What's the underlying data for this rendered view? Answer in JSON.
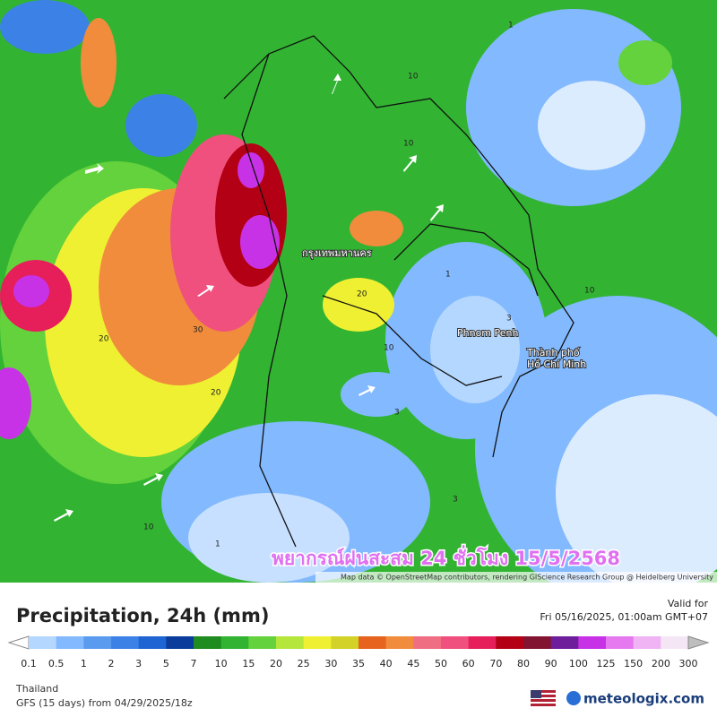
{
  "map": {
    "overlay_title": "พยากรณ์ฝนสะสม 24 ชั่วโมง 15/5/2568",
    "attribution": "Map data © OpenStreetMap contributors, rendering GIScience Research Group @ Heidelberg University",
    "places": [
      "กรุงเทพมหานคร",
      "Phnom Penh",
      "Thành phố",
      "Hồ Chí Minh"
    ],
    "contour_labels": [
      "20",
      "30",
      "20",
      "20",
      "10",
      "10",
      "1",
      "3",
      "3",
      "10",
      "10",
      "1",
      "3",
      "10",
      "1"
    ]
  },
  "legend": {
    "title": "Precipitation, 24h (mm)",
    "valid_label": "Valid for",
    "valid_time": "Fri 05/16/2025, 01:00am GMT+07",
    "scale_labels": [
      "0.1",
      "0.5",
      "1",
      "2",
      "3",
      "5",
      "7",
      "10",
      "15",
      "20",
      "25",
      "30",
      "35",
      "40",
      "45",
      "50",
      "60",
      "70",
      "80",
      "90",
      "100",
      "125",
      "150",
      "200",
      "300"
    ],
    "colors": [
      "#b4d7ff",
      "#82b9ff",
      "#5a9bf0",
      "#3c82e6",
      "#1e64d2",
      "#0a3c9b",
      "#1e8c1e",
      "#32b432",
      "#64d23c",
      "#b4e63c",
      "#f0f032",
      "#d2d228",
      "#e6641e",
      "#f08c3c",
      "#f06e82",
      "#f0507d",
      "#e61e5a",
      "#b40014",
      "#821432",
      "#6e1e9b",
      "#c832e6",
      "#e678f0",
      "#f0b4f5",
      "#f5e6f5"
    ],
    "region": "Thailand",
    "model": "GFS (15 days) from 04/29/2025/18z",
    "brand": "meteologix.com"
  }
}
